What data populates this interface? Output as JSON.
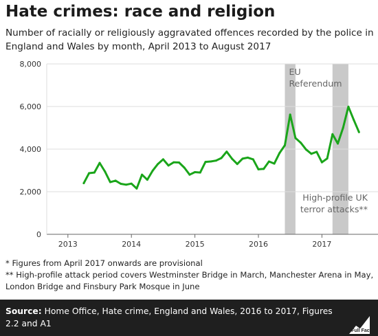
{
  "title": "Hate crimes: race and religion",
  "subtitle": "Number of racially or religiously aggravated offences recorded by the police in England and Wales by month, April 2013 to August 2017",
  "notes": [
    "* Figures from April 2017 onwards are provisional",
    "** High-profile attack period covers Westminster Bridge in March, Manchester Arena in May, London Bridge and Finsbury Park Mosque in June"
  ],
  "source": {
    "label": "Source:",
    "text": "Home Office, Hate crime, England and Wales, 2016 to 2017, Figures 2.2 and A1"
  },
  "logo": {
    "icon": "full-fact-logo",
    "text": "Full Fact"
  },
  "colors": {
    "line": "#1aa51a",
    "band": "#c9c9c9",
    "grid": "#dddddd",
    "axis": "#666666",
    "footer": "#1f1f1f"
  },
  "chart_data": {
    "type": "line",
    "ylim": [
      0,
      8000
    ],
    "yticks": [
      0,
      2000,
      4000,
      6000,
      8000
    ],
    "ytick_labels": [
      "0",
      "2,000",
      "4,000",
      "6,000",
      "8,000"
    ],
    "x_start": "2012-09",
    "x_end": "2017-09",
    "xticks": [
      "2013",
      "2014",
      "2015",
      "2016",
      "2017"
    ],
    "grid": true,
    "series": [
      {
        "dates": [
          "2013-04",
          "2013-05",
          "2013-06",
          "2013-07",
          "2013-08",
          "2013-09",
          "2013-10",
          "2013-11",
          "2013-12",
          "2014-01",
          "2014-02",
          "2014-03",
          "2014-04",
          "2014-05",
          "2014-06",
          "2014-07",
          "2014-08",
          "2014-09",
          "2014-10",
          "2014-11",
          "2014-12",
          "2015-01",
          "2015-02",
          "2015-03",
          "2015-04",
          "2015-05",
          "2015-06",
          "2015-07",
          "2015-08",
          "2015-09",
          "2015-10",
          "2015-11",
          "2015-12",
          "2016-01",
          "2016-02",
          "2016-03",
          "2016-04",
          "2016-05",
          "2016-06",
          "2016-07",
          "2016-08",
          "2016-09",
          "2016-10",
          "2016-11",
          "2016-12",
          "2017-01",
          "2017-02",
          "2017-03",
          "2017-04",
          "2017-05",
          "2017-06",
          "2017-07",
          "2017-08"
        ],
        "values": [
          2400,
          2870,
          2900,
          3350,
          2950,
          2450,
          2520,
          2370,
          2330,
          2380,
          2150,
          2800,
          2560,
          2980,
          3300,
          3520,
          3230,
          3380,
          3370,
          3130,
          2800,
          2920,
          2900,
          3400,
          3420,
          3460,
          3580,
          3880,
          3550,
          3300,
          3550,
          3600,
          3520,
          3050,
          3070,
          3420,
          3320,
          3820,
          4180,
          5620,
          4520,
          4300,
          3980,
          3780,
          3870,
          3380,
          3560,
          4700,
          4260,
          5000,
          5990,
          5380,
          4800
        ]
      }
    ],
    "bands": [
      {
        "start": "2016-06",
        "end": "2016-08",
        "label_lines": [
          "EU",
          "Referendum"
        ],
        "label_position": "top"
      },
      {
        "start": "2017-03",
        "end": "2017-06",
        "label_lines": [
          "High-profile UK",
          "terror attacks**"
        ],
        "label_position": "bottom"
      }
    ]
  }
}
